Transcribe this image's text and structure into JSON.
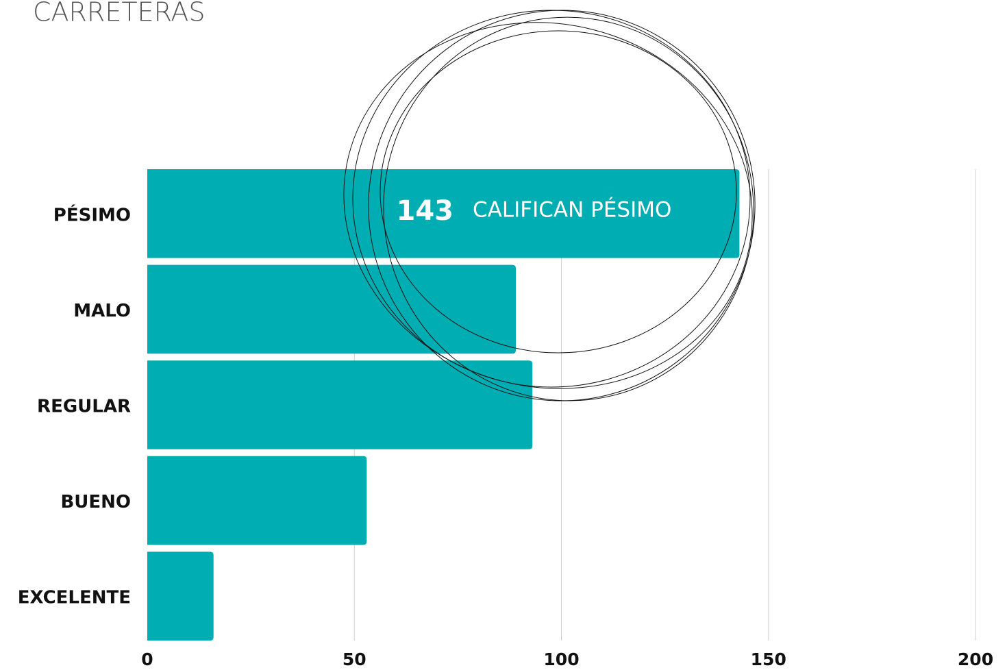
{
  "chart_data": {
    "type": "hbar",
    "title": "CARRETERAS",
    "categories": [
      "PÉSIMO",
      "MALO",
      "REGULAR",
      "BUENO",
      "EXCELENTE"
    ],
    "values": [
      143,
      89,
      93,
      53,
      16
    ],
    "color": "#00adb3",
    "xlim": [
      0,
      200
    ],
    "xticks": [
      0,
      50,
      100,
      150,
      200
    ],
    "grid": true,
    "annotation": "CALIFICAN PÉSIMO"
  }
}
